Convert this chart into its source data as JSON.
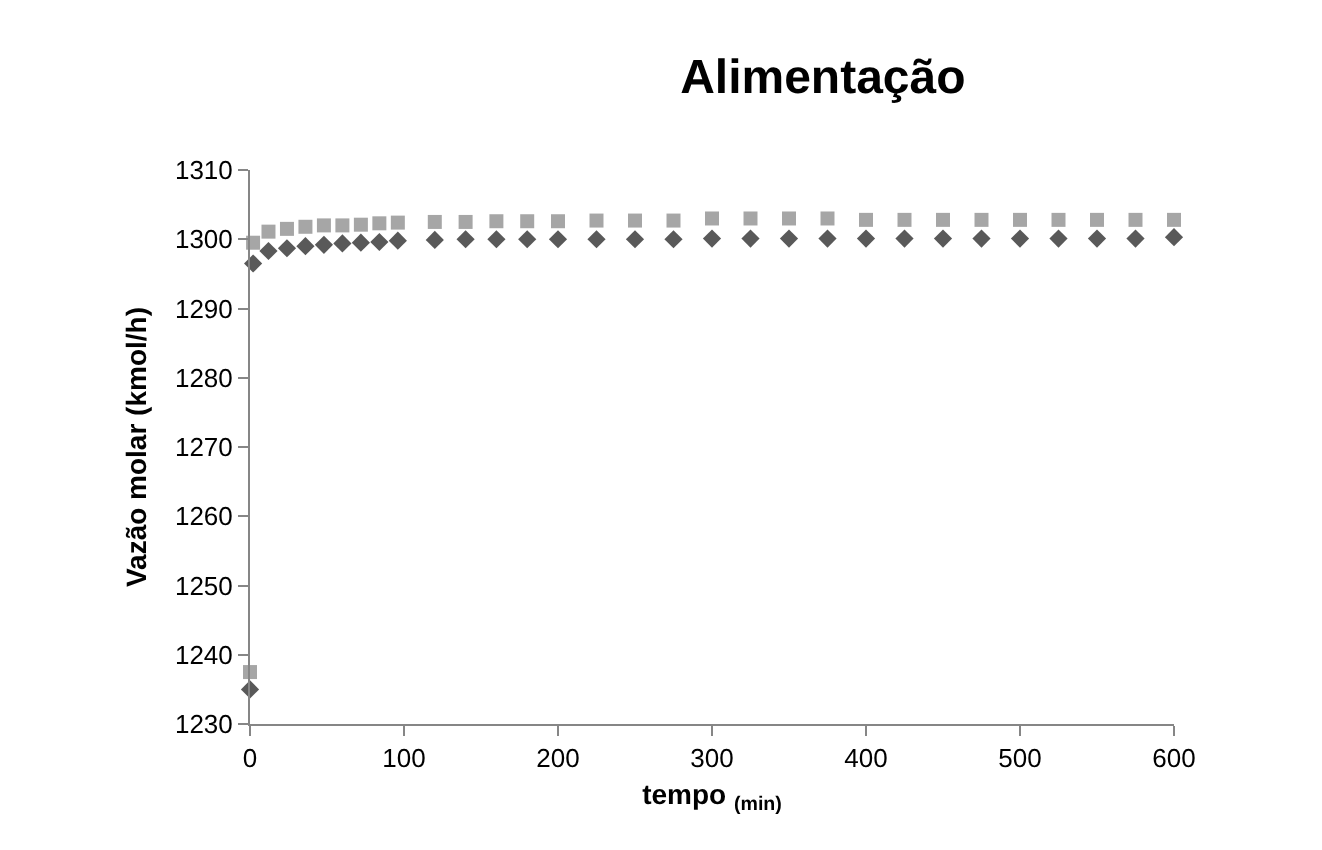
{
  "chart_data": {
    "type": "scatter",
    "title": "Alimentação",
    "xlabel": "tempo $_{(min)}$",
    "ylabel": "Vazão molar (kmol/h)",
    "x": [
      0,
      2,
      12,
      24,
      36,
      48,
      60,
      72,
      84,
      96,
      120,
      140,
      160,
      180,
      200,
      225,
      250,
      275,
      300,
      325,
      350,
      375,
      400,
      425,
      450,
      475,
      500,
      525,
      550,
      575,
      600
    ],
    "series": [
      {
        "color": "#595959",
        "marker": "diamond",
        "values": [
          1235,
          1296.5,
          1298.3,
          1298.7,
          1299,
          1299.2,
          1299.4,
          1299.5,
          1299.6,
          1299.8,
          1299.9,
          1300,
          1300,
          1300,
          1300,
          1300,
          1300,
          1300,
          1300.1,
          1300.1,
          1300.1,
          1300.1,
          1300.1,
          1300.1,
          1300.1,
          1300.1,
          1300.1,
          1300.1,
          1300.1,
          1300.1,
          1300.3
        ]
      },
      {
        "color": "#a6a6a6",
        "marker": "square",
        "values": [
          1237.5,
          1299.5,
          1301.1,
          1301.5,
          1301.8,
          1302,
          1302,
          1302.1,
          1302.3,
          1302.4,
          1302.5,
          1302.5,
          1302.6,
          1302.6,
          1302.6,
          1302.7,
          1302.7,
          1302.7,
          1303,
          1303,
          1303,
          1303,
          1302.8,
          1302.8,
          1302.8,
          1302.8,
          1302.8,
          1302.8,
          1302.8,
          1302.8,
          1302.8
        ]
      }
    ],
    "xlim": [
      0,
      600
    ],
    "xticks": [
      0,
      100,
      200,
      300,
      400,
      500,
      600
    ],
    "ylim": [
      1230,
      1310
    ],
    "yticks": [
      1230,
      1240,
      1250,
      1260,
      1270,
      1280,
      1290,
      1300,
      1310
    ],
    "grid": false
  }
}
